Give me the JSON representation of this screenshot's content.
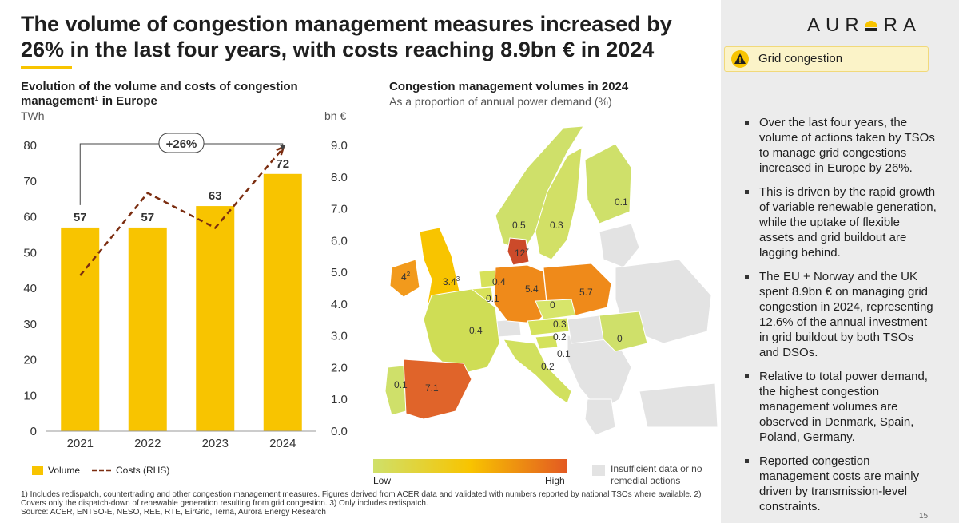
{
  "header": {
    "title": "The volume of congestion management measures increased by 26% in the last four years, with costs reaching 8.9bn € in 2024",
    "logo_text_a": "AUR",
    "logo_text_b": "RA"
  },
  "sidebar": {
    "tag": "Grid congestion",
    "bullets": [
      "Over the last four years, the volume of actions taken by TSOs to manage grid congestions increased in Europe by 26%.",
      "This is driven by the rapid growth of variable renewable generation, while the uptake of flexible assets and grid buildout are lagging behind.",
      "The EU + Norway and the UK spent 8.9bn € on managing grid congestion in 2024, representing 12.6% of the annual investment in grid buildout by both TSOs and DSOs.",
      "Relative to total power demand, the highest congestion management volumes are observed in Denmark, Spain, Poland, Germany.",
      "Reported congestion management costs are mainly driven by transmission-level constraints."
    ],
    "page_number": "15"
  },
  "chart_data": {
    "type": "bar",
    "title": "Evolution of the volume and costs of congestion management¹ in Europe",
    "categories": [
      "2021",
      "2022",
      "2023",
      "2024"
    ],
    "series": [
      {
        "name": "Volume",
        "axis": "left",
        "kind": "bar",
        "values": [
          57,
          57,
          63,
          72
        ],
        "color": "#f8c400"
      },
      {
        "name": "Costs (RHS)",
        "axis": "right",
        "kind": "line",
        "values": [
          4.9,
          7.5,
          6.4,
          8.9
        ],
        "color": "#7b2d10"
      }
    ],
    "ylabel_left": "TWh",
    "ylabel_right": "bn €",
    "ylim_left": [
      0,
      80
    ],
    "ylim_right": [
      0,
      9
    ],
    "yticks_left": [
      "0",
      "10",
      "20",
      "30",
      "40",
      "50",
      "60",
      "70",
      "80"
    ],
    "yticks_right": [
      "0.0",
      "1.0",
      "2.0",
      "3.0",
      "4.0",
      "5.0",
      "6.0",
      "7.0",
      "8.0",
      "9.0"
    ],
    "annotation": "+26%",
    "legend": [
      "Volume",
      "Costs (RHS)"
    ]
  },
  "map": {
    "title": "Congestion management volumes in 2024",
    "subtitle": "As a proportion of annual power demand (%)",
    "labels": [
      {
        "text": "0.1",
        "country": "Finland"
      },
      {
        "text": "0.5",
        "country": "Norway"
      },
      {
        "text": "0.3",
        "country": "Sweden"
      },
      {
        "text": "12",
        "sup": "2",
        "country": "Denmark"
      },
      {
        "text": "4",
        "sup": "2",
        "country": "Ireland"
      },
      {
        "text": "3.4",
        "sup": "3",
        "country": "Great Britain"
      },
      {
        "text": "0.4",
        "country": "Netherlands"
      },
      {
        "text": "0.1",
        "country": "Belgium"
      },
      {
        "text": "5.4",
        "country": "Germany"
      },
      {
        "text": "5.7",
        "country": "Poland"
      },
      {
        "text": "0",
        "country": "Czechia"
      },
      {
        "text": "0.4",
        "country": "France"
      },
      {
        "text": "0.3",
        "country": "Austria"
      },
      {
        "text": "0.2",
        "country": "Slovenia"
      },
      {
        "text": "0.1",
        "country": "Croatia"
      },
      {
        "text": "0",
        "country": "Romania"
      },
      {
        "text": "0.2",
        "country": "Italy"
      },
      {
        "text": "0.1",
        "country": "Portugal"
      },
      {
        "text": "7.1",
        "country": "Spain"
      }
    ],
    "legend_low": "Low",
    "legend_high": "High",
    "legend_insufficient": "Insufficient data or no remedial actions",
    "colors": {
      "low": "#cfe06a",
      "mid": "#f8c400",
      "high": "#e35a22",
      "insufficient": "#e3e3e3"
    }
  },
  "footnotes": [
    "1) Includes redispatch, countertrading and other congestion management measures. Figures derived from ACER data and validated with numbers reported by national TSOs where available. 2)",
    "Covers only the dispatch-down of renewable generation resulting from grid congestion. 3) Only includes redispatch.",
    "Source: ACER, ENTSO-E, NESO, REE, RTE, EirGrid, Terna, Aurora Energy Research"
  ]
}
